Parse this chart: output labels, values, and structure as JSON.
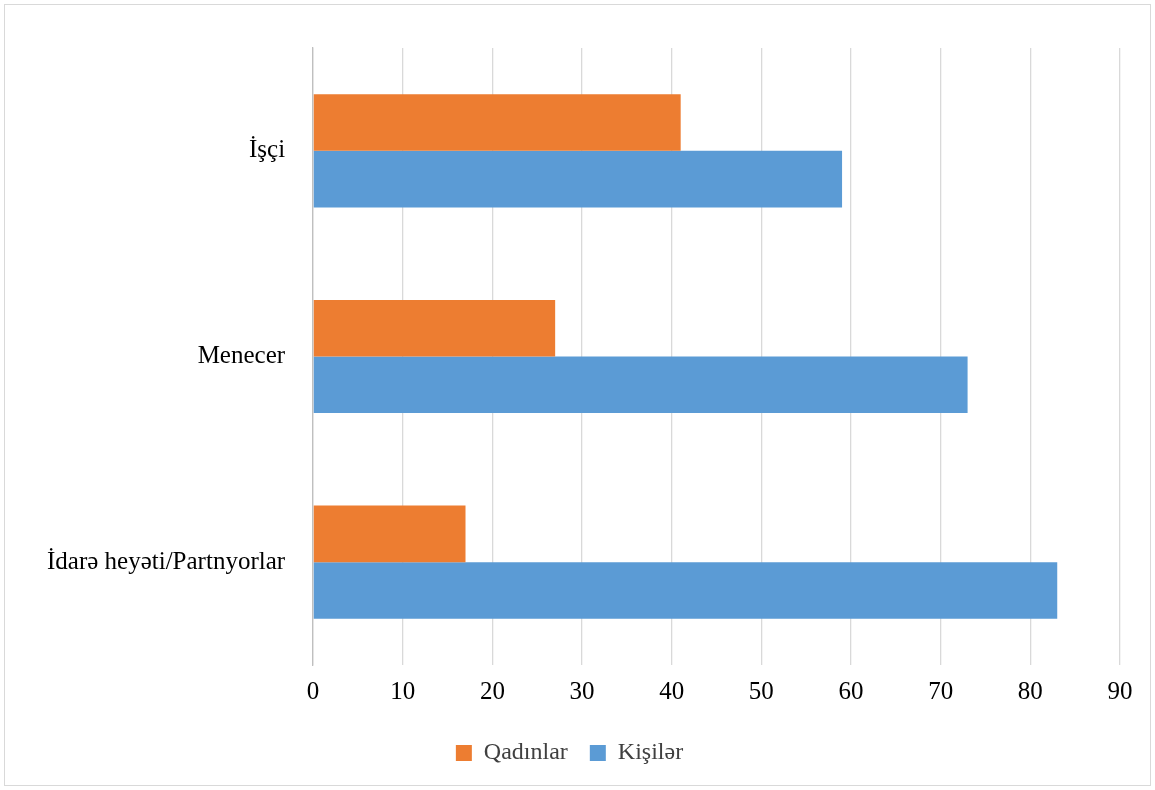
{
  "chart_data": {
    "type": "bar",
    "orientation": "horizontal",
    "categories": [
      "İşçi",
      "Menecer",
      "İdarə heyəti/Partnyorlar"
    ],
    "series": [
      {
        "name": "Qadınlar",
        "color": "#ed7d31",
        "values": [
          41,
          27,
          17
        ]
      },
      {
        "name": "Kişilər",
        "color": "#5b9bd5",
        "values": [
          59,
          73,
          83
        ]
      }
    ],
    "xlim": [
      0,
      90
    ],
    "xticks": [
      0,
      10,
      20,
      30,
      40,
      50,
      60,
      70,
      80,
      90
    ],
    "grid": "x",
    "legend": "bottom"
  }
}
